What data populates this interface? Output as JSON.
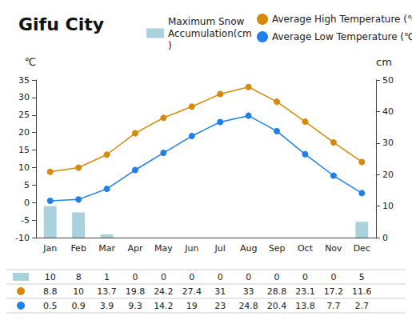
{
  "chart_data": {
    "type": "line",
    "title": "Gifu City",
    "categories": [
      "Jan",
      "Feb",
      "Mar",
      "Apr",
      "May",
      "Jun",
      "Jul",
      "Aug",
      "Sep",
      "Oct",
      "Nov",
      "Dec"
    ],
    "series": [
      {
        "name": "Maximum Snow Accumulation(cm)",
        "type": "bar",
        "axis": "y2",
        "color": "#a9d3dc",
        "values": [
          10,
          8,
          1,
          0,
          0,
          0,
          0,
          0,
          0,
          0,
          0,
          5
        ]
      },
      {
        "name": "Average High Temperature (℃)",
        "type": "line",
        "color": "#d68a0c",
        "marker": "circle",
        "values": [
          8.8,
          10,
          13.7,
          19.8,
          24.2,
          27.4,
          31,
          33,
          28.8,
          23.1,
          17.2,
          11.6
        ]
      },
      {
        "name": "Average Low Temperature (℃)",
        "type": "line",
        "color": "#1f80e8",
        "marker": "circle",
        "values": [
          0.5,
          0.9,
          3.9,
          9.3,
          14.2,
          19,
          23,
          24.8,
          20.4,
          13.8,
          7.7,
          2.7
        ]
      }
    ],
    "y_label": "℃",
    "y2_label": "cm",
    "ylim": [
      -10,
      35
    ],
    "yticks": [
      -10,
      -5,
      0,
      5,
      10,
      15,
      20,
      25,
      30,
      35
    ],
    "y2lim": [
      0,
      50
    ],
    "y2ticks": [
      0,
      10,
      20,
      30,
      40,
      50
    ],
    "grid": false
  }
}
